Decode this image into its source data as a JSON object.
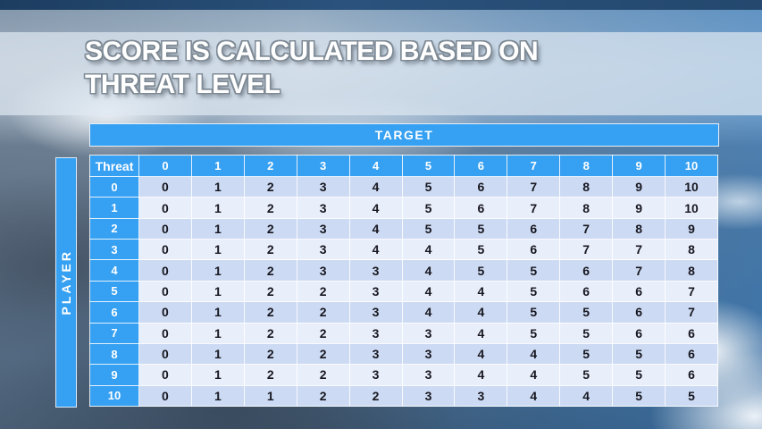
{
  "slide": {
    "title_line1": "SCORE IS CALCULATED BASED ON",
    "title_line2": "THREAT LEVEL"
  },
  "matrix": {
    "target_label": "TARGET",
    "player_label": "PLAYER",
    "corner_label": "Threat",
    "column_headers": [
      "0",
      "1",
      "2",
      "3",
      "4",
      "5",
      "6",
      "7",
      "8",
      "9",
      "10"
    ],
    "rows": [
      {
        "threat": "0",
        "values": [
          "0",
          "1",
          "2",
          "3",
          "4",
          "5",
          "6",
          "7",
          "8",
          "9",
          "10"
        ]
      },
      {
        "threat": "1",
        "values": [
          "0",
          "1",
          "2",
          "3",
          "4",
          "5",
          "6",
          "7",
          "8",
          "9",
          "10"
        ]
      },
      {
        "threat": "2",
        "values": [
          "0",
          "1",
          "2",
          "3",
          "4",
          "5",
          "5",
          "6",
          "7",
          "8",
          "9"
        ]
      },
      {
        "threat": "3",
        "values": [
          "0",
          "1",
          "2",
          "3",
          "4",
          "4",
          "5",
          "6",
          "7",
          "7",
          "8"
        ]
      },
      {
        "threat": "4",
        "values": [
          "0",
          "1",
          "2",
          "3",
          "3",
          "4",
          "5",
          "5",
          "6",
          "7",
          "8"
        ]
      },
      {
        "threat": "5",
        "values": [
          "0",
          "1",
          "2",
          "2",
          "3",
          "4",
          "4",
          "5",
          "6",
          "6",
          "7"
        ]
      },
      {
        "threat": "6",
        "values": [
          "0",
          "1",
          "2",
          "2",
          "3",
          "4",
          "4",
          "5",
          "5",
          "6",
          "7"
        ]
      },
      {
        "threat": "7",
        "values": [
          "0",
          "1",
          "2",
          "2",
          "3",
          "3",
          "4",
          "5",
          "5",
          "6",
          "6"
        ]
      },
      {
        "threat": "8",
        "values": [
          "0",
          "1",
          "2",
          "2",
          "3",
          "3",
          "4",
          "4",
          "5",
          "5",
          "6"
        ]
      },
      {
        "threat": "9",
        "values": [
          "0",
          "1",
          "2",
          "2",
          "3",
          "3",
          "4",
          "4",
          "5",
          "5",
          "6"
        ]
      },
      {
        "threat": "10",
        "values": [
          "0",
          "1",
          "1",
          "2",
          "2",
          "3",
          "3",
          "4",
          "4",
          "5",
          "5"
        ]
      }
    ]
  },
  "colors": {
    "header_blue": "#36a0f2",
    "row_dark": "#ccdaf3",
    "row_light": "#e9eefb",
    "cell_text": "#17171f"
  }
}
